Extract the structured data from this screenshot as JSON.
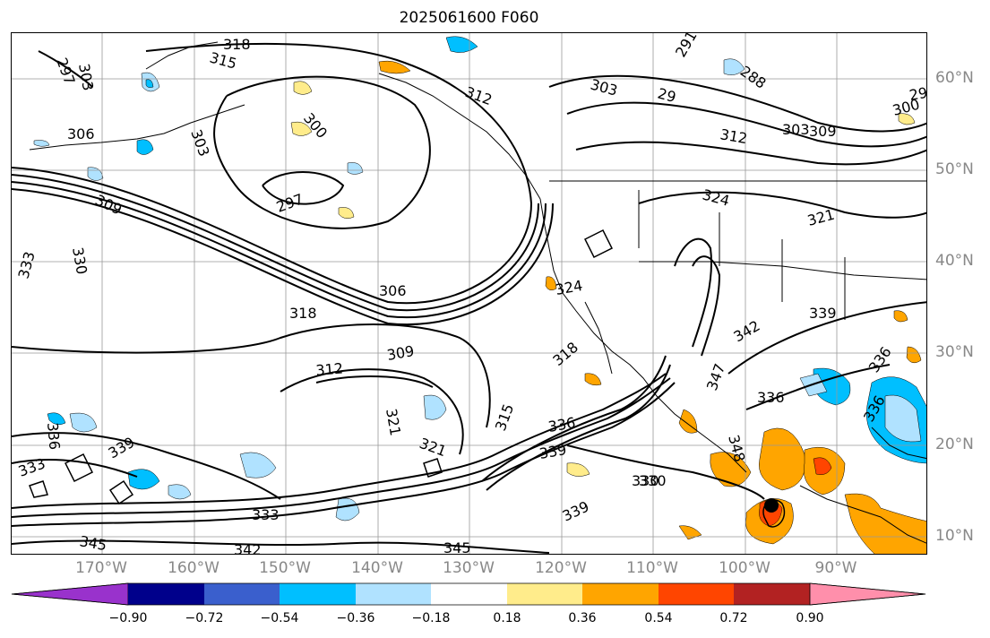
{
  "title": "2025061600 F060",
  "longitude_labels": [
    "170°W",
    "160°W",
    "150°W",
    "140°W",
    "130°W",
    "120°W",
    "110°W",
    "100°W",
    "90°W"
  ],
  "latitude_labels": [
    "60°N",
    "50°N",
    "40°N",
    "30°N",
    "20°N",
    "10°N"
  ],
  "contour_labels": [
    "318",
    "315",
    "297",
    "303",
    "306",
    "303",
    "300",
    "297",
    "309",
    "333",
    "330",
    "306",
    "318",
    "309",
    "312",
    "312",
    "303",
    "291",
    "288",
    "29",
    "303",
    "300",
    "309",
    "29",
    "312",
    "324",
    "321",
    "324",
    "339",
    "342",
    "318",
    "336",
    "336",
    "347",
    "348",
    "336",
    "339",
    "336",
    "330",
    "321",
    "321",
    "315",
    "336",
    "339",
    "333",
    "345",
    "342",
    "345",
    "330",
    "339"
  ],
  "colorbar": {
    "tick_labels": [
      "−0.90",
      "−0.72",
      "−0.54",
      "−0.36",
      "−0.18",
      "0.18",
      "0.36",
      "0.54",
      "0.72",
      "0.90"
    ],
    "colors": [
      "#9932cc",
      "#00008b",
      "#3a5fcd",
      "#00bfff",
      "#b0e2ff",
      "#ffffff",
      "#ffec8b",
      "#ffa500",
      "#ff4500",
      "#b22222",
      "#ff8fab"
    ]
  }
}
